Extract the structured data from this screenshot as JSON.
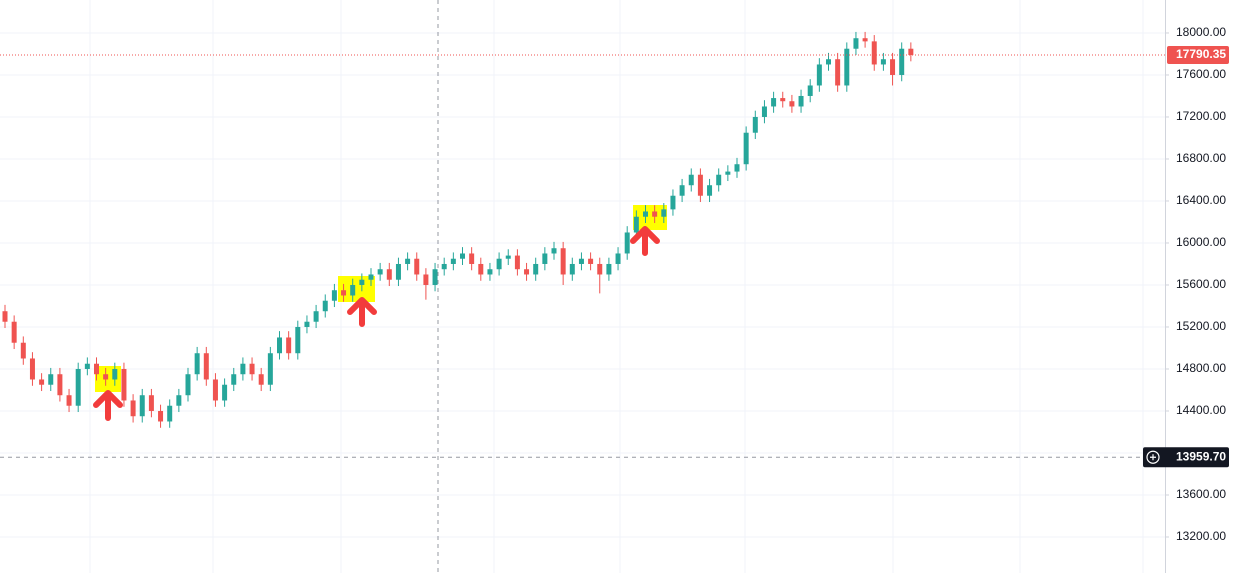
{
  "chart_data": {
    "type": "candlestick",
    "up_color": "#26a69a",
    "down_color": "#ef5350",
    "grid": true,
    "ylim": [
      12857,
      18314
    ],
    "yticks": [
      {
        "value": 13200,
        "label": "13200.00"
      },
      {
        "value": 13600,
        "label": "13600.00"
      },
      {
        "value": 14000,
        "label": "14000.00"
      },
      {
        "value": 14400,
        "label": "14400.00"
      },
      {
        "value": 14800,
        "label": "14800.00"
      },
      {
        "value": 15200,
        "label": "15200.00"
      },
      {
        "value": 15600,
        "label": "15600.00"
      },
      {
        "value": 16000,
        "label": "16000.00"
      },
      {
        "value": 16400,
        "label": "16400.00"
      },
      {
        "value": 16800,
        "label": "16800.00"
      },
      {
        "value": 17200,
        "label": "17200.00"
      },
      {
        "value": 17600,
        "label": "17600.00"
      },
      {
        "value": 18000,
        "label": "18000.00"
      }
    ],
    "last_price": {
      "value": 17790.35,
      "label": "17790.35",
      "color": "#ef5350"
    },
    "crosshair_price": {
      "value": 13959.7,
      "label": "13959.70"
    },
    "open": [
      15350,
      15250,
      15050,
      14900,
      14700,
      14650,
      14750,
      14550,
      14450,
      14800,
      14850,
      14750,
      14700,
      14800,
      14500,
      14350,
      14550,
      14400,
      14300,
      14450,
      14550,
      14750,
      14950,
      14700,
      14500,
      14650,
      14750,
      14850,
      14750,
      14650,
      14950,
      15100,
      14950,
      15200,
      15250,
      15350,
      15450,
      15550,
      15500,
      15600,
      15650,
      15700,
      15750,
      15650,
      15800,
      15850,
      15700,
      15600,
      15750,
      15800,
      15850,
      15900,
      15800,
      15700,
      15750,
      15850,
      15880,
      15750,
      15700,
      15800,
      15900,
      15950,
      15700,
      15800,
      15850,
      15800,
      15700,
      15800,
      15900,
      16100,
      16250,
      16300,
      16250,
      16320,
      16450,
      16550,
      16650,
      16450,
      16550,
      16650,
      16680,
      16750,
      17050,
      17200,
      17300,
      17380,
      17350,
      17300,
      17400,
      17500,
      17700,
      17750,
      17500,
      17850,
      17950,
      17920,
      17700,
      17750,
      17600,
      17850
    ],
    "high": [
      15410,
      15310,
      15110,
      14960,
      14760,
      14810,
      14810,
      14610,
      14860,
      14910,
      14910,
      14810,
      14860,
      14860,
      14560,
      14610,
      14610,
      14460,
      14510,
      14610,
      14810,
      15010,
      15010,
      14760,
      14710,
      14810,
      14910,
      14910,
      14810,
      15010,
      15160,
      15160,
      15260,
      15310,
      15410,
      15510,
      15610,
      15610,
      15660,
      15710,
      15760,
      15810,
      15810,
      15860,
      15910,
      15910,
      15760,
      15810,
      15860,
      15910,
      15960,
      15960,
      15860,
      15810,
      15910,
      15940,
      15940,
      15810,
      15860,
      15960,
      16010,
      16010,
      15860,
      15910,
      15910,
      15860,
      15860,
      15960,
      16160,
      16310,
      16360,
      16360,
      16380,
      16510,
      16610,
      16710,
      16710,
      16610,
      16710,
      16740,
      16810,
      17110,
      17260,
      17360,
      17440,
      17440,
      17410,
      17460,
      17560,
      17760,
      17810,
      17810,
      17910,
      18010,
      18010,
      17980,
      17810,
      17810,
      17910,
      17910
    ],
    "low": [
      15190,
      14990,
      14840,
      14640,
      14590,
      14590,
      14490,
      14390,
      14390,
      14740,
      14690,
      14640,
      14640,
      14440,
      14290,
      14290,
      14340,
      14240,
      14240,
      14390,
      14490,
      14690,
      14640,
      14440,
      14440,
      14590,
      14690,
      14690,
      14590,
      14590,
      14890,
      14890,
      14890,
      15140,
      15190,
      15290,
      15390,
      15440,
      15440,
      15540,
      15590,
      15640,
      15590,
      15590,
      15740,
      15640,
      15460,
      15540,
      15690,
      15740,
      15790,
      15740,
      15640,
      15640,
      15690,
      15790,
      15690,
      15640,
      15640,
      15740,
      15840,
      15600,
      15640,
      15740,
      15740,
      15520,
      15640,
      15740,
      15840,
      16040,
      16190,
      16190,
      16190,
      16260,
      16390,
      16490,
      16390,
      16390,
      16490,
      16590,
      16620,
      16690,
      16990,
      17140,
      17240,
      17290,
      17240,
      17240,
      17340,
      17440,
      17640,
      17440,
      17440,
      17790,
      17860,
      17640,
      17640,
      17500,
      17540,
      17730
    ],
    "close": [
      15250,
      15050,
      14900,
      14700,
      14650,
      14750,
      14550,
      14450,
      14800,
      14850,
      14750,
      14700,
      14800,
      14500,
      14350,
      14550,
      14400,
      14300,
      14450,
      14550,
      14750,
      14950,
      14700,
      14500,
      14650,
      14750,
      14850,
      14750,
      14650,
      14950,
      15100,
      14950,
      15200,
      15250,
      15350,
      15450,
      15550,
      15500,
      15600,
      15650,
      15700,
      15750,
      15650,
      15800,
      15850,
      15700,
      15600,
      15750,
      15800,
      15850,
      15900,
      15800,
      15700,
      15750,
      15850,
      15880,
      15750,
      15700,
      15800,
      15900,
      15950,
      15700,
      15800,
      15850,
      15800,
      15700,
      15800,
      15900,
      16100,
      16250,
      16300,
      16250,
      16320,
      16450,
      16550,
      16650,
      16450,
      16550,
      16650,
      16680,
      16750,
      17050,
      17200,
      17300,
      17380,
      17350,
      17300,
      17400,
      17500,
      17700,
      17750,
      17500,
      17850,
      17950,
      17920,
      17700,
      17750,
      17600,
      17850,
      17790.35
    ]
  }
}
